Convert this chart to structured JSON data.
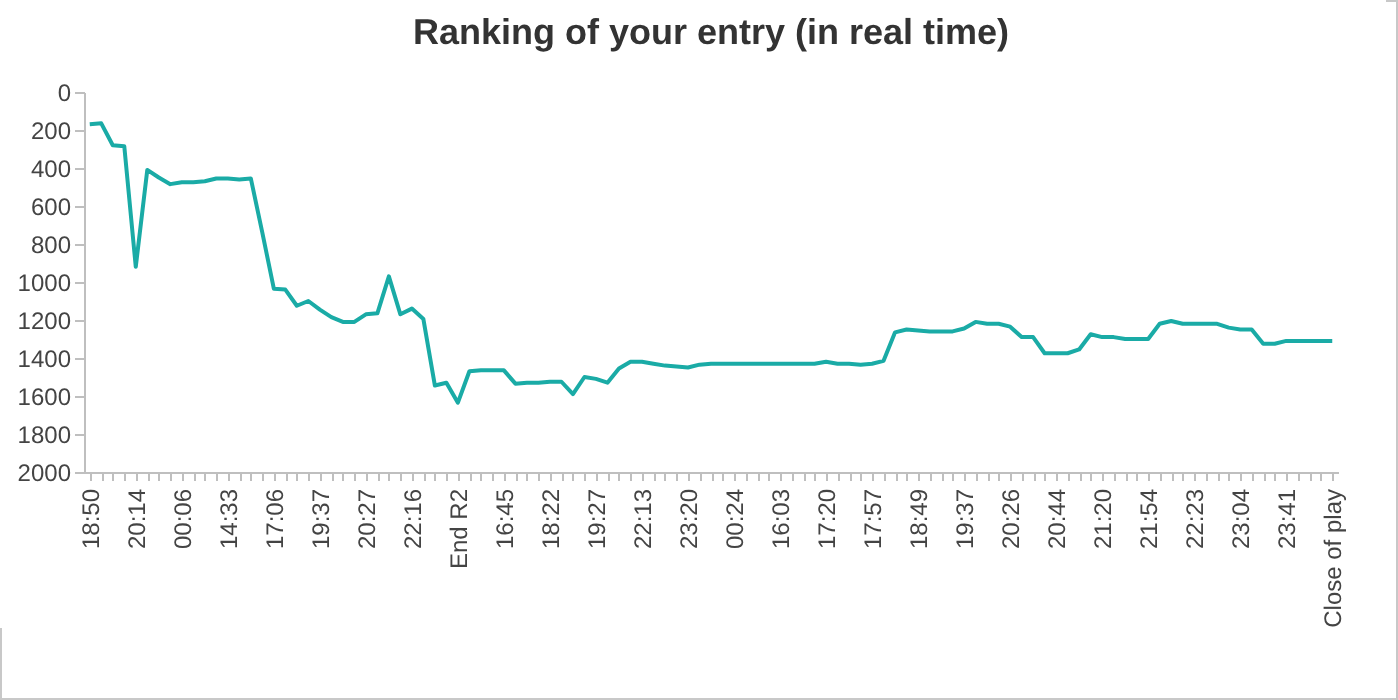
{
  "chart_data": {
    "type": "line",
    "title": "Ranking of your entry (in real time)",
    "categories": [
      "18:50",
      null,
      null,
      null,
      "20:14",
      null,
      null,
      null,
      "00:06",
      null,
      null,
      null,
      "14:33",
      null,
      null,
      null,
      "17:06",
      null,
      null,
      null,
      "19:37",
      null,
      null,
      null,
      "20:27",
      null,
      null,
      null,
      "22:16",
      null,
      null,
      null,
      "End R2",
      null,
      null,
      null,
      "16:45",
      null,
      null,
      null,
      "18:22",
      null,
      null,
      null,
      "19:27",
      null,
      null,
      null,
      "22:13",
      null,
      null,
      null,
      "23:20",
      null,
      null,
      null,
      "00:24",
      null,
      null,
      null,
      "16:03",
      null,
      null,
      null,
      "17:20",
      null,
      null,
      null,
      "17:57",
      null,
      null,
      null,
      "18:49",
      null,
      null,
      null,
      "19:37",
      null,
      null,
      null,
      "20:26",
      null,
      null,
      null,
      "20:44",
      null,
      null,
      null,
      "21:20",
      null,
      null,
      null,
      "21:54",
      null,
      null,
      null,
      "22:23",
      null,
      null,
      null,
      "23:04",
      null,
      null,
      null,
      "23:41",
      null,
      null,
      null,
      "Close of play"
    ],
    "series": [
      {
        "color": "#1aaba6",
        "values": [
          170,
          165,
          280,
          285,
          920,
          410,
          450,
          485,
          475,
          475,
          470,
          455,
          455,
          460,
          455,
          740,
          1035,
          1040,
          1125,
          1100,
          1145,
          1185,
          1210,
          1210,
          1170,
          1165,
          970,
          1170,
          1140,
          1195,
          1545,
          1530,
          1635,
          1470,
          1465,
          1465,
          1465,
          1535,
          1530,
          1530,
          1525,
          1525,
          1590,
          1500,
          1510,
          1530,
          1455,
          1420,
          1420,
          1430,
          1440,
          1445,
          1450,
          1435,
          1430,
          1430,
          1430,
          1430,
          1430,
          1430,
          1430,
          1430,
          1430,
          1430,
          1420,
          1430,
          1430,
          1435,
          1430,
          1415,
          1265,
          1250,
          1255,
          1260,
          1260,
          1260,
          1245,
          1210,
          1220,
          1220,
          1235,
          1290,
          1290,
          1375,
          1375,
          1375,
          1355,
          1275,
          1290,
          1290,
          1300,
          1300,
          1300,
          1220,
          1205,
          1220,
          1220,
          1220,
          1220,
          1240,
          1250,
          1250,
          1325,
          1325,
          1310,
          1310,
          1310,
          1310,
          1310
        ]
      }
    ],
    "ylim": [
      2000,
      0
    ],
    "yticks": [
      0,
      200,
      400,
      600,
      800,
      1000,
      1200,
      1400,
      1600,
      1800,
      2000
    ],
    "grid": false,
    "marker": "none",
    "line_style": "solid"
  }
}
